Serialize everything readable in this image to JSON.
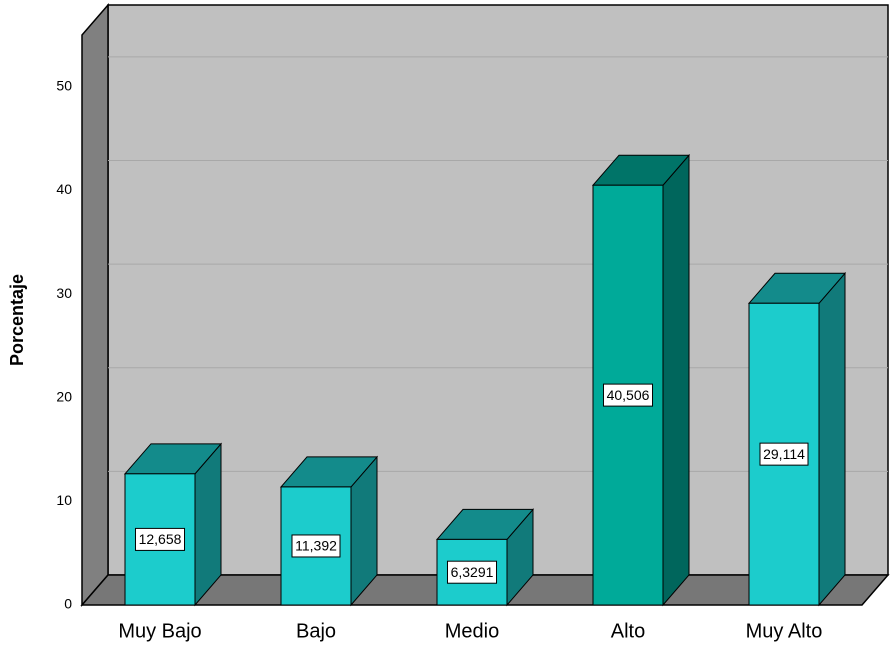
{
  "chart_data": {
    "type": "bar3d",
    "y_label": "Porcentaje",
    "categories": [
      "Muy Bajo",
      "Bajo",
      "Medio",
      "Alto",
      "Muy Alto"
    ],
    "values": [
      12.658,
      11.392,
      6.3291,
      40.506,
      29.114
    ],
    "value_labels": [
      "12,658",
      "11,392",
      "6,3291",
      "40,506",
      "29,114"
    ],
    "colors": [
      "#1ccccc",
      "#1ccccc",
      "#1ccccc",
      "#00aa99",
      "#1ccccc"
    ],
    "ylim": [
      0,
      55
    ],
    "yticks": [
      0,
      10,
      20,
      30,
      40,
      50
    ],
    "grid": true
  }
}
